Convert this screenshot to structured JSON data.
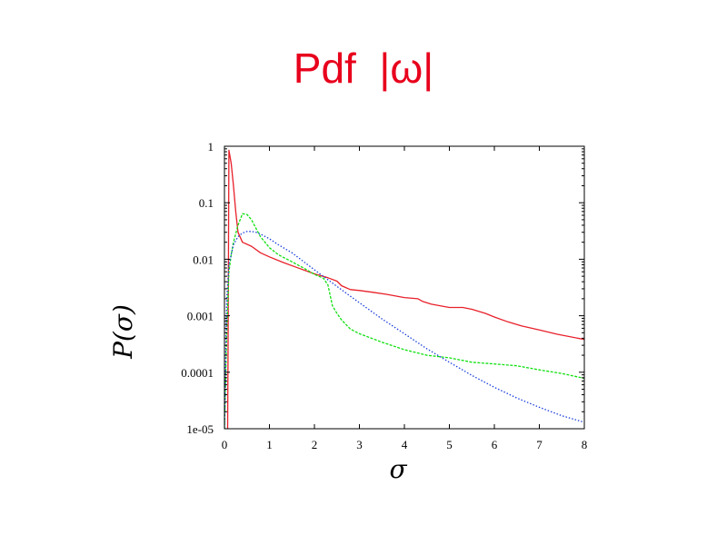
{
  "slide": {
    "title": "Pdf  |ω|"
  },
  "chart_data": {
    "type": "line",
    "title": "",
    "xlabel": "σ",
    "ylabel": "P(σ)",
    "xlim": [
      0,
      8
    ],
    "ylim": [
      1e-05,
      1
    ],
    "yscale": "log",
    "grid": false,
    "xticks": [
      0,
      1,
      2,
      3,
      4,
      5,
      6,
      7,
      8
    ],
    "xtick_labels": [
      "0",
      "1",
      "2",
      "3",
      "4",
      "5",
      "6",
      "7",
      "8"
    ],
    "yticks": [
      1,
      0.1,
      0.01,
      0.001,
      0.0001,
      1e-05
    ],
    "ytick_labels": [
      "1",
      "0.1",
      "0.01",
      "0.001",
      "0.0001",
      "1e-05"
    ],
    "series": [
      {
        "color": "#e8202a",
        "style": "solid",
        "x": [
          0.07,
          0.08,
          0.1,
          0.15,
          0.2,
          0.25,
          0.3,
          0.4,
          0.6,
          0.8,
          1.0,
          1.3,
          1.6,
          2.0,
          2.3,
          2.5,
          2.6,
          2.8,
          3.0,
          3.3,
          3.6,
          4.0,
          4.3,
          4.4,
          4.6,
          5.0,
          5.3,
          5.5,
          5.8,
          6.0,
          6.3,
          6.6,
          7.0,
          7.4,
          8.0
        ],
        "y": [
          1e-05,
          0.0003,
          0.85,
          0.5,
          0.2,
          0.07,
          0.03,
          0.02,
          0.017,
          0.013,
          0.011,
          0.0088,
          0.0072,
          0.0055,
          0.0047,
          0.0041,
          0.0034,
          0.0029,
          0.0028,
          0.0026,
          0.0024,
          0.0021,
          0.002,
          0.0018,
          0.0016,
          0.0014,
          0.0014,
          0.0013,
          0.0011,
          0.00095,
          0.00078,
          0.00066,
          0.00056,
          0.00047,
          0.00038
        ]
      },
      {
        "color": "#10e010",
        "style": "dashed",
        "x": [
          0.0,
          0.05,
          0.1,
          0.15,
          0.2,
          0.3,
          0.4,
          0.5,
          0.6,
          0.8,
          1.0,
          1.2,
          1.5,
          1.8,
          2.0,
          2.2,
          2.3,
          2.4,
          2.5,
          2.6,
          2.8,
          3.0,
          3.5,
          4.0,
          4.5,
          5.0,
          5.5,
          6.0,
          6.5,
          7.0,
          7.5,
          8.0
        ],
        "y": [
          1e-05,
          0.0005,
          0.006,
          0.012,
          0.02,
          0.04,
          0.064,
          0.062,
          0.05,
          0.025,
          0.016,
          0.012,
          0.009,
          0.0067,
          0.0054,
          0.0046,
          0.0035,
          0.0015,
          0.0011,
          0.00085,
          0.00058,
          0.00048,
          0.00034,
          0.00025,
          0.0002,
          0.00018,
          0.00015,
          0.00014,
          0.00013,
          0.00011,
          9.5e-05,
          7.8e-05
        ]
      },
      {
        "color": "#1a3fdc",
        "style": "dotted",
        "x": [
          0.0,
          0.05,
          0.1,
          0.2,
          0.3,
          0.4,
          0.5,
          0.6,
          0.7,
          0.8,
          1.0,
          1.2,
          1.5,
          2.0,
          2.5,
          3.0,
          3.5,
          4.0,
          4.5,
          5.0,
          5.5,
          6.0,
          6.5,
          7.0,
          7.5,
          8.0
        ],
        "y": [
          1e-05,
          0.002,
          0.008,
          0.018,
          0.025,
          0.029,
          0.031,
          0.031,
          0.03,
          0.028,
          0.023,
          0.018,
          0.013,
          0.0065,
          0.0033,
          0.0017,
          0.00088,
          0.00048,
          0.00026,
          0.00015,
          8.8e-05,
          5.4e-05,
          3.5e-05,
          2.4e-05,
          1.7e-05,
          1.3e-05
        ]
      }
    ]
  }
}
